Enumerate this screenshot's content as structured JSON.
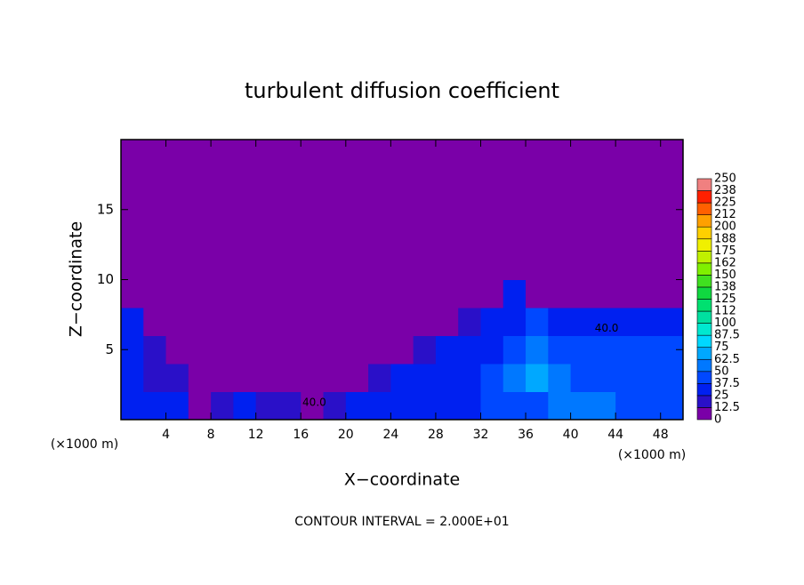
{
  "chart_data": {
    "type": "heatmap",
    "title": "turbulent diffusion coefficient",
    "x_label": "X−coordinate",
    "y_label": "Z−coordinate",
    "x_unit": "(×1000 m)",
    "y_unit": "(×1000 m)",
    "footnote": "CONTOUR INTERVAL = 2.000E+01",
    "x": [
      1,
      3,
      5,
      7,
      9,
      11,
      13,
      15,
      17,
      19,
      21,
      23,
      25,
      27,
      29,
      31,
      33,
      35,
      37,
      39,
      41,
      43,
      45,
      47,
      49
    ],
    "z": [
      1,
      3,
      5,
      7,
      9,
      11,
      13,
      15,
      17,
      19
    ],
    "values": [
      [
        30,
        30,
        25,
        10,
        15,
        25,
        20,
        15,
        10,
        20,
        30,
        30,
        30,
        25,
        30,
        35,
        40,
        40,
        45,
        55,
        60,
        50,
        40,
        45,
        40
      ],
      [
        25,
        20,
        15,
        10,
        8,
        5,
        5,
        5,
        5,
        5,
        10,
        20,
        25,
        30,
        30,
        30,
        40,
        50,
        70,
        55,
        45,
        45,
        40,
        40,
        40
      ],
      [
        30,
        20,
        10,
        5,
        5,
        5,
        5,
        5,
        5,
        5,
        5,
        5,
        10,
        20,
        25,
        30,
        35,
        45,
        60,
        45,
        40,
        45,
        40,
        40,
        40
      ],
      [
        25,
        10,
        5,
        3,
        3,
        3,
        3,
        3,
        3,
        3,
        3,
        3,
        3,
        5,
        10,
        15,
        25,
        35,
        40,
        35,
        25,
        30,
        35,
        35,
        30
      ],
      [
        3,
        3,
        3,
        3,
        3,
        3,
        3,
        3,
        3,
        3,
        3,
        3,
        3,
        3,
        3,
        3,
        10,
        25,
        8,
        3,
        3,
        3,
        3,
        3,
        3
      ],
      [
        3,
        3,
        3,
        3,
        3,
        3,
        3,
        3,
        3,
        3,
        3,
        3,
        3,
        3,
        3,
        3,
        8,
        3,
        3,
        3,
        3,
        3,
        3,
        3,
        3
      ],
      [
        2,
        2,
        2,
        2,
        2,
        2,
        2,
        2,
        2,
        2,
        2,
        2,
        2,
        2,
        2,
        2,
        2,
        2,
        2,
        2,
        2,
        2,
        2,
        2,
        2
      ],
      [
        2,
        2,
        2,
        2,
        2,
        2,
        2,
        2,
        2,
        2,
        2,
        2,
        2,
        2,
        2,
        2,
        2,
        2,
        2,
        2,
        2,
        2,
        2,
        2,
        2
      ],
      [
        2,
        2,
        2,
        2,
        2,
        2,
        2,
        2,
        2,
        2,
        2,
        2,
        2,
        2,
        2,
        2,
        2,
        2,
        2,
        2,
        2,
        2,
        2,
        2,
        2
      ],
      [
        2,
        2,
        2,
        2,
        2,
        2,
        2,
        2,
        2,
        2,
        2,
        2,
        2,
        2,
        2,
        2,
        2,
        2,
        2,
        2,
        2,
        2,
        2,
        2,
        2
      ]
    ],
    "xlim": [
      0,
      50
    ],
    "ylim": [
      0,
      20
    ],
    "xticks": [
      4,
      8,
      12,
      16,
      20,
      24,
      28,
      32,
      36,
      40,
      44,
      48
    ],
    "yticks": [
      5,
      10,
      15
    ],
    "colorbar": {
      "ticks": [
        0,
        12.5,
        25,
        37.5,
        50,
        62.5,
        75,
        87.5,
        100,
        {
          "value": 112.5,
          "label": "112"
        },
        125,
        {
          "value": 137.5,
          "label": "138"
        },
        150,
        {
          "value": 162.5,
          "label": "162"
        },
        175,
        {
          "value": 187.5,
          "label": "188"
        },
        200,
        {
          "value": 212.5,
          "label": "212"
        },
        225,
        {
          "value": 237.5,
          "label": "238"
        },
        250
      ],
      "colors": [
        "#7a00a8",
        "#2a10c8",
        "#0020f0",
        "#0048ff",
        "#0078ff",
        "#00a8ff",
        "#00d8ff",
        "#00e8d0",
        "#00e0a0",
        "#00e070",
        "#10d840",
        "#40e020",
        "#80f000",
        "#c0f000",
        "#f0f000",
        "#ffd000",
        "#ffa000",
        "#ff6000",
        "#ff2000",
        "#f08080"
      ]
    },
    "annotations": [
      {
        "text": "40.0",
        "x": 17.2,
        "z": 1.2
      },
      {
        "text": "40.0",
        "x": 43.2,
        "z": 6.5
      }
    ]
  }
}
